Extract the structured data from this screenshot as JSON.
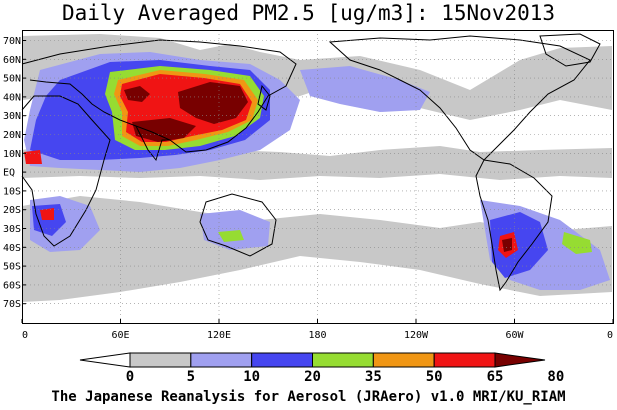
{
  "title": "Daily Averaged PM2.5 [ug/m3]: 15Nov2013",
  "footer": "The Japanese Reanalysis for Aerosol (JRAero) v1.0 MRI/KU_RIAM",
  "lat_labels": [
    "70N",
    "60N",
    "50N",
    "40N",
    "30N",
    "20N",
    "10N",
    "EQ",
    "10S",
    "20S",
    "30S",
    "40S",
    "50S",
    "60S",
    "70S"
  ],
  "lon_labels": [
    "0",
    "60E",
    "120E",
    "180",
    "120W",
    "60W",
    "0"
  ],
  "colorbar": {
    "labels": [
      "0",
      "5",
      "10",
      "20",
      "35",
      "50",
      "65",
      "80"
    ],
    "colors": [
      "#ffffff",
      "#c8c8c8",
      "#a0a0f0",
      "#4646f0",
      "#96dc32",
      "#f09614",
      "#f01414",
      "#780000"
    ]
  },
  "colors": {
    "grey": "#c8c8c8",
    "lightblue": "#a0a0f0",
    "blue": "#4646f0",
    "green": "#96dc32",
    "orange": "#f09614",
    "red": "#f01414",
    "darkred": "#780000"
  }
}
